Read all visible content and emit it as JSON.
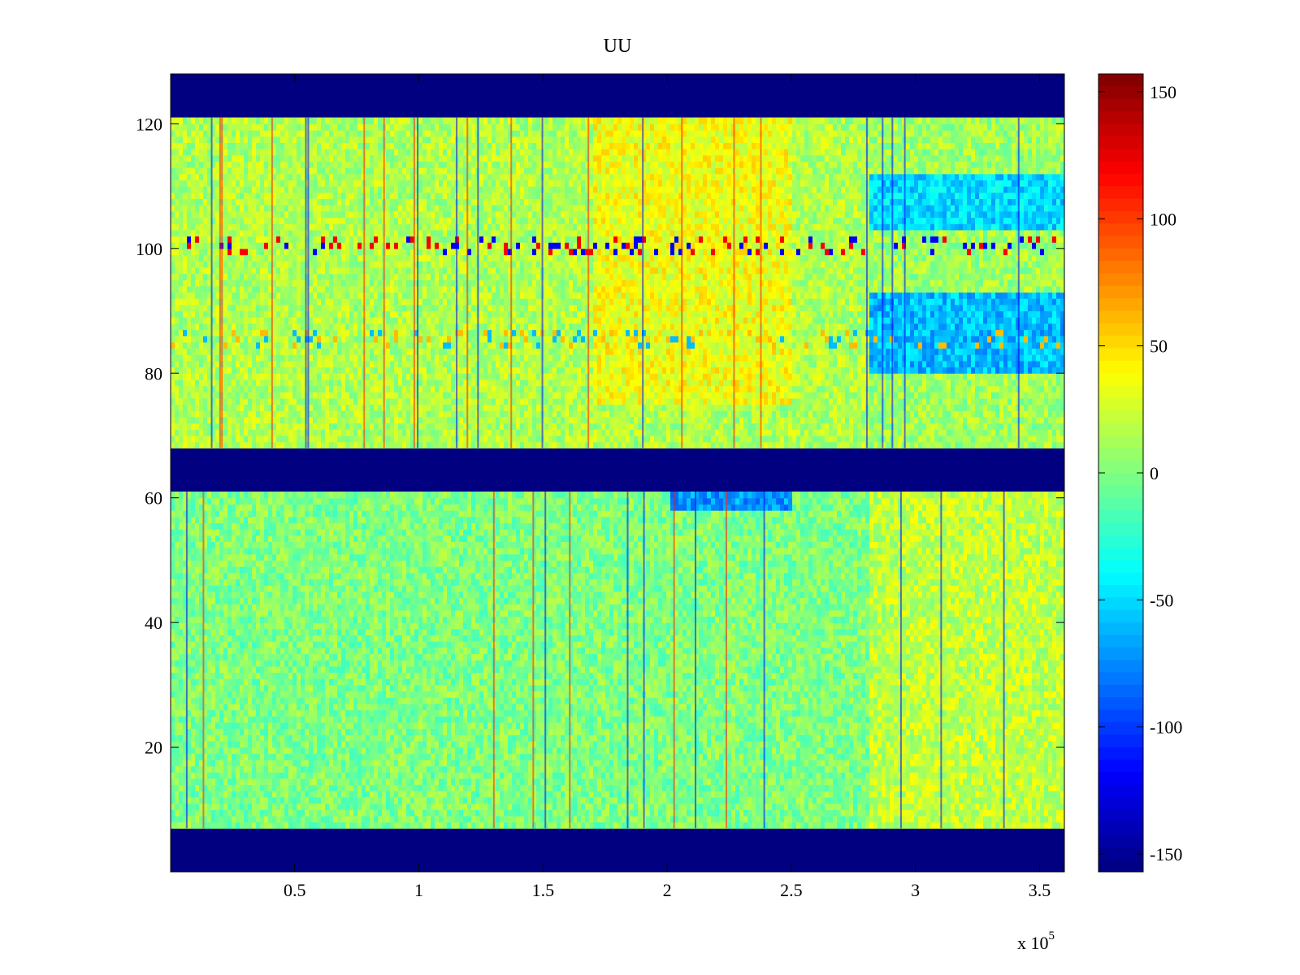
{
  "chart_data": {
    "type": "heatmap",
    "title": "UU",
    "xlabel": "",
    "ylabel": "",
    "x_range": [
      0,
      360000
    ],
    "y_range": [
      0,
      128
    ],
    "x_ticks": [
      50000,
      100000,
      150000,
      200000,
      250000,
      300000,
      350000
    ],
    "x_tick_labels": [
      "0.5",
      "1",
      "1.5",
      "2",
      "2.5",
      "3",
      "3.5"
    ],
    "x_exponent_label": "x 10",
    "x_exponent_power": "5",
    "y_ticks": [
      20,
      40,
      60,
      80,
      100,
      120
    ],
    "y_tick_labels": [
      "20",
      "40",
      "60",
      "80",
      "100",
      "120"
    ],
    "colormap": "jet",
    "color_range": [
      -157,
      157
    ],
    "colorbar_ticks": [
      150,
      100,
      50,
      0,
      -50,
      -100,
      -150
    ],
    "colorbar_tick_labels": [
      "150",
      "100",
      "50",
      "0",
      "-50",
      "-100",
      "-150"
    ],
    "empty_bands": [
      {
        "y_from": 121,
        "y_to": 128,
        "value": -157
      },
      {
        "y_from": 61,
        "y_to": 68,
        "value": -157
      },
      {
        "y_from": 0,
        "y_to": 7,
        "value": -157
      }
    ],
    "data_bands": [
      {
        "y_from": 68,
        "y_to": 121,
        "base_value": 10
      },
      {
        "y_from": 7,
        "y_to": 61,
        "base_value": 0
      }
    ],
    "regions": [
      {
        "x_from": 0,
        "x_to": 280000,
        "y_from": 68,
        "y_to": 121,
        "value": 15
      },
      {
        "x_from": 170000,
        "x_to": 250000,
        "y_from": 75,
        "y_to": 121,
        "value": 35
      },
      {
        "x_from": 280000,
        "x_to": 360000,
        "y_from": 80,
        "y_to": 93,
        "value": -60
      },
      {
        "x_from": 280000,
        "x_to": 360000,
        "y_from": 103,
        "y_to": 112,
        "value": -50
      },
      {
        "x_from": 280000,
        "x_to": 360000,
        "y_from": 7,
        "y_to": 61,
        "value": 20
      },
      {
        "x_from": 200000,
        "x_to": 250000,
        "y_from": 58,
        "y_to": 61,
        "value": -70
      }
    ],
    "stripe_rows": [
      {
        "y": 100,
        "value": 120
      },
      {
        "y": 85,
        "value": 60
      }
    ],
    "grid": false,
    "legend": "colorbar-right"
  }
}
